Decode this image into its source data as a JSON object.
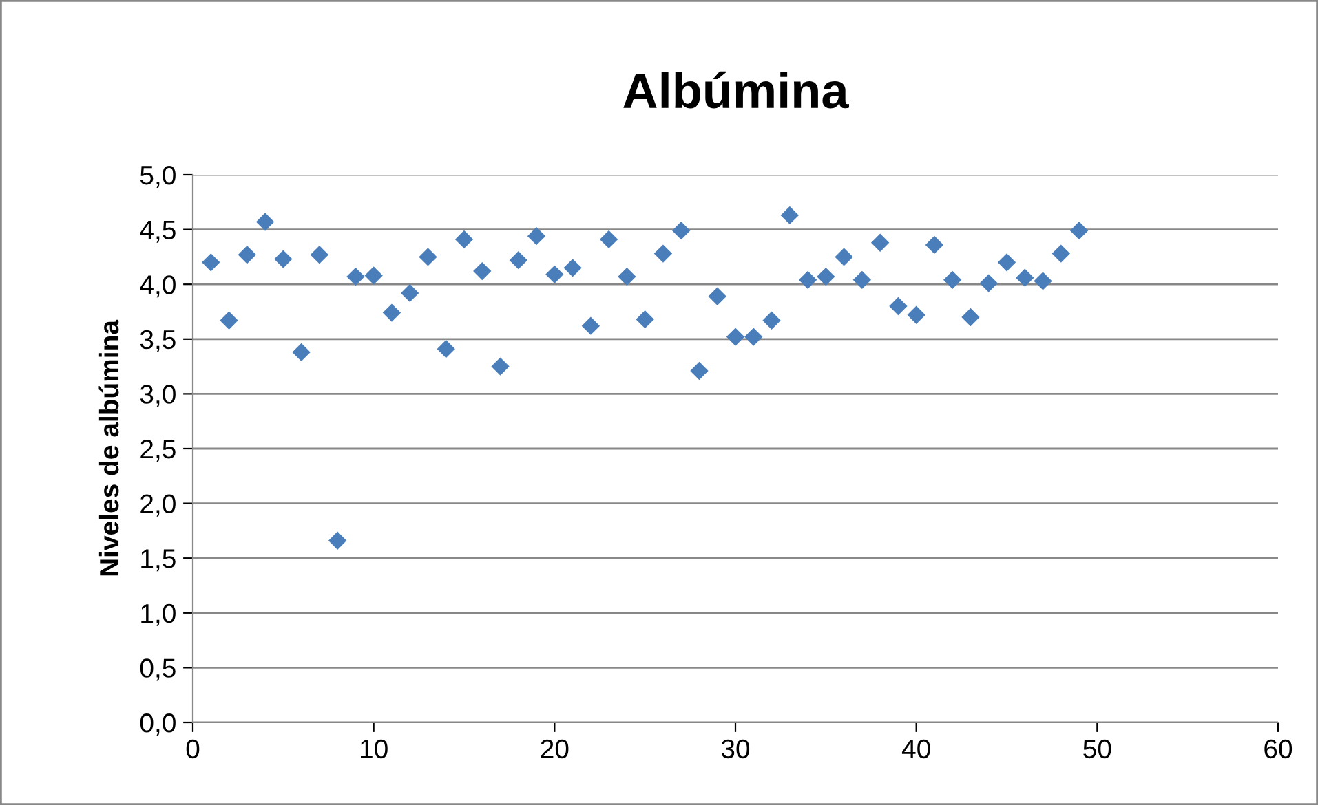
{
  "chart_data": {
    "type": "scatter",
    "title": "Albúmina",
    "ylabel": "Niveles de albúmina",
    "x": [
      1,
      2,
      3,
      4,
      5,
      6,
      7,
      8,
      9,
      10,
      11,
      12,
      13,
      14,
      15,
      16,
      17,
      18,
      19,
      20,
      21,
      22,
      23,
      24,
      25,
      26,
      27,
      28,
      29,
      30,
      31,
      32,
      33,
      34,
      35,
      36,
      37,
      38,
      39,
      40,
      41,
      42,
      43,
      44,
      45,
      46,
      47,
      48,
      49
    ],
    "series": [
      {
        "color": "#4a7ebb",
        "values": [
          4.2,
          3.67,
          4.27,
          4.57,
          4.23,
          3.38,
          4.27,
          1.66,
          4.07,
          4.08,
          3.74,
          3.92,
          4.25,
          3.41,
          4.41,
          4.12,
          3.25,
          4.22,
          4.44,
          4.09,
          4.15,
          3.62,
          4.41,
          4.07,
          3.68,
          4.28,
          4.49,
          3.21,
          3.89,
          3.52,
          3.52,
          3.67,
          4.63,
          4.04,
          4.07,
          4.25,
          4.04,
          4.38,
          3.8,
          3.72,
          4.36,
          4.04,
          3.7,
          4.01,
          4.2,
          4.06,
          4.03,
          4.28,
          4.49
        ]
      }
    ],
    "xlim": [
      0,
      60
    ],
    "xticks": [
      0,
      10,
      20,
      30,
      40,
      50,
      60
    ],
    "ylim": [
      0,
      5
    ],
    "yticks": [
      {
        "value": 0,
        "label": "0,0"
      },
      {
        "value": 0.5,
        "label": "0,5"
      },
      {
        "value": 1,
        "label": "1,0"
      },
      {
        "value": 1.5,
        "label": "1,5"
      },
      {
        "value": 2,
        "label": "2,0"
      },
      {
        "value": 2.5,
        "label": "2,5"
      },
      {
        "value": 3,
        "label": "3,0"
      },
      {
        "value": 3.5,
        "label": "3,5"
      },
      {
        "value": 4,
        "label": "4,0"
      },
      {
        "value": 4.5,
        "label": "4,5"
      },
      {
        "value": 5,
        "label": "5,0"
      }
    ],
    "grid": "y",
    "marker": "diamond"
  }
}
